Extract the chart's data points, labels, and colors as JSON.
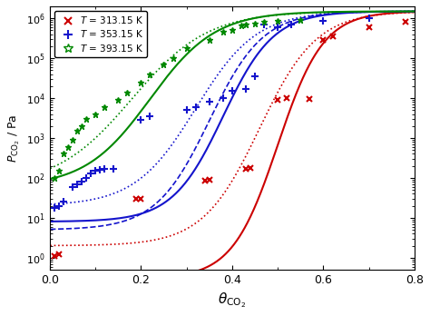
{
  "xlabel": "$\\theta_{\\mathrm{CO_2}}$",
  "ylabel": "$P_{\\mathrm{CO_2}}$ / Pa",
  "xlim": [
    0.0,
    0.8
  ],
  "ylim": [
    0.5,
    2000000.0
  ],
  "bg_color": "#f0f0f0",
  "colors": {
    "red": "#cc0000",
    "blue": "#1414cc",
    "green": "#008800"
  },
  "red_data": [
    [
      0.01,
      1.1
    ],
    [
      0.02,
      1.2
    ],
    [
      0.19,
      30
    ],
    [
      0.2,
      30
    ],
    [
      0.34,
      85
    ],
    [
      0.35,
      90
    ],
    [
      0.43,
      170
    ],
    [
      0.44,
      175
    ],
    [
      0.5,
      9000
    ],
    [
      0.52,
      10000
    ],
    [
      0.57,
      9500
    ],
    [
      0.6,
      280000
    ],
    [
      0.62,
      350000
    ],
    [
      0.7,
      600000
    ],
    [
      0.78,
      800000
    ]
  ],
  "blue_data": [
    [
      0.01,
      18
    ],
    [
      0.02,
      20
    ],
    [
      0.03,
      25
    ],
    [
      0.05,
      60
    ],
    [
      0.06,
      70
    ],
    [
      0.07,
      80
    ],
    [
      0.08,
      100
    ],
    [
      0.09,
      130
    ],
    [
      0.1,
      150
    ],
    [
      0.11,
      160
    ],
    [
      0.12,
      170
    ],
    [
      0.14,
      170
    ],
    [
      0.2,
      2800
    ],
    [
      0.22,
      3500
    ],
    [
      0.3,
      5000
    ],
    [
      0.32,
      6000
    ],
    [
      0.35,
      8000
    ],
    [
      0.38,
      10000
    ],
    [
      0.4,
      15000
    ],
    [
      0.43,
      17000
    ],
    [
      0.45,
      35000
    ],
    [
      0.47,
      700000
    ],
    [
      0.5,
      600000
    ],
    [
      0.53,
      700000
    ],
    [
      0.6,
      850000
    ],
    [
      0.7,
      1000000
    ]
  ],
  "green_data": [
    [
      0.01,
      100
    ],
    [
      0.02,
      150
    ],
    [
      0.03,
      400
    ],
    [
      0.04,
      600
    ],
    [
      0.05,
      900
    ],
    [
      0.06,
      1500
    ],
    [
      0.07,
      2000
    ],
    [
      0.08,
      3000
    ],
    [
      0.1,
      4000
    ],
    [
      0.12,
      6000
    ],
    [
      0.15,
      9000
    ],
    [
      0.17,
      14000
    ],
    [
      0.2,
      25000
    ],
    [
      0.22,
      40000
    ],
    [
      0.25,
      70000
    ],
    [
      0.27,
      100000
    ],
    [
      0.3,
      180000
    ],
    [
      0.35,
      280000
    ],
    [
      0.38,
      450000
    ],
    [
      0.4,
      500000
    ],
    [
      0.42,
      650000
    ],
    [
      0.43,
      700000
    ],
    [
      0.45,
      750000
    ],
    [
      0.47,
      800000
    ],
    [
      0.5,
      850000
    ],
    [
      0.55,
      900000
    ]
  ],
  "curve_params": {
    "red_solid": {
      "theta0": 0.5,
      "k": 20,
      "Pmin": 0.3,
      "Pmax": 1500000.0
    },
    "red_dot": {
      "theta0": 0.46,
      "k": 16,
      "Pmin": 2.0,
      "Pmax": 1500000.0
    },
    "blue_solid": {
      "theta0": 0.38,
      "k": 18,
      "Pmin": 8.0,
      "Pmax": 1500000.0
    },
    "blue_dash": {
      "theta0": 0.35,
      "k": 17,
      "Pmin": 5.0,
      "Pmax": 1500000.0
    },
    "blue_dot": {
      "theta0": 0.32,
      "k": 15,
      "Pmin": 20.0,
      "Pmax": 1500000.0
    },
    "green_solid": {
      "theta0": 0.22,
      "k": 14,
      "Pmin": 60.0,
      "Pmax": 1500000.0
    },
    "green_dot": {
      "theta0": 0.18,
      "k": 12,
      "Pmin": 60.0,
      "Pmax": 1500000.0
    }
  }
}
